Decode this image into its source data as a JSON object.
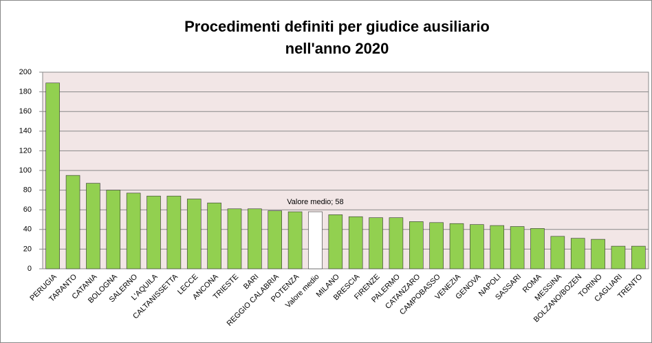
{
  "chart_data": {
    "type": "bar",
    "title": [
      "Procedimenti definiti per giudice ausiliario",
      "nell'anno 2020"
    ],
    "categories": [
      "PERUGIA",
      "TARANTO",
      "CATANIA",
      "BOLOGNA",
      "SALERNO",
      "L'AQUILA",
      "CALTANISSETTA",
      "LECCE",
      "ANCONA",
      "TRIESTE",
      "BARI",
      "REGGIO CALABRIA",
      "POTENZA",
      "Valore medio",
      "MILANO",
      "BRESCIA",
      "FIRENZE",
      "PALERMO",
      "CATANZARO",
      "CAMPOBASSO",
      "VENEZIA",
      "GENOVA",
      "NAPOLI",
      "SASSARI",
      "ROMA",
      "MESSINA",
      "BOLZANO/BOZEN",
      "TORINO",
      "CAGLIARI",
      "TRENTO"
    ],
    "values": [
      189,
      95,
      87,
      80,
      77,
      74,
      74,
      71,
      67,
      61,
      61,
      59,
      58,
      58,
      55,
      53,
      52,
      52,
      48,
      47,
      46,
      45,
      44,
      43,
      41,
      33,
      31,
      30,
      23,
      23
    ],
    "value_labels": [
      null,
      null,
      null,
      null,
      null,
      null,
      null,
      null,
      null,
      null,
      null,
      null,
      null,
      "Valore medio; 58",
      null,
      null,
      null,
      null,
      null,
      null,
      null,
      null,
      null,
      null,
      null,
      null,
      null,
      null,
      null,
      null
    ],
    "colors": [
      "#92d050",
      "#92d050",
      "#92d050",
      "#92d050",
      "#92d050",
      "#92d050",
      "#92d050",
      "#92d050",
      "#92d050",
      "#92d050",
      "#92d050",
      "#92d050",
      "#92d050",
      "#ffffff",
      "#92d050",
      "#92d050",
      "#92d050",
      "#92d050",
      "#92d050",
      "#92d050",
      "#92d050",
      "#92d050",
      "#92d050",
      "#92d050",
      "#92d050",
      "#92d050",
      "#92d050",
      "#92d050",
      "#92d050",
      "#92d050"
    ],
    "ylim": [
      0,
      200
    ],
    "yticks": [
      0,
      20,
      40,
      60,
      80,
      100,
      120,
      140,
      160,
      180,
      200
    ],
    "grid": true
  }
}
